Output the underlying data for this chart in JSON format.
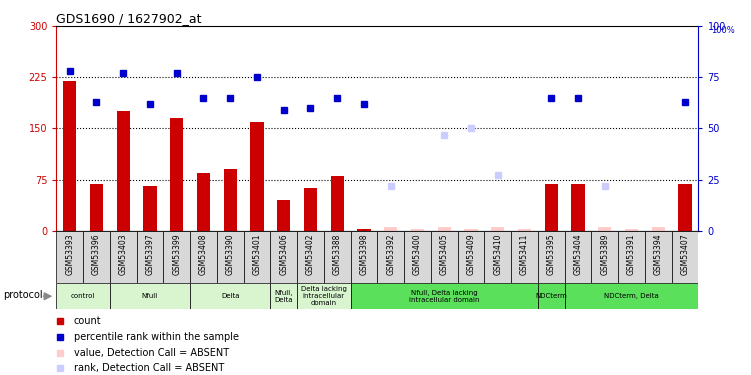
{
  "title": "GDS1690 / 1627902_at",
  "samples": [
    "GSM53393",
    "GSM53396",
    "GSM53403",
    "GSM53397",
    "GSM53399",
    "GSM53408",
    "GSM53390",
    "GSM53401",
    "GSM53406",
    "GSM53402",
    "GSM53388",
    "GSM53398",
    "GSM53392",
    "GSM53400",
    "GSM53405",
    "GSM53409",
    "GSM53410",
    "GSM53411",
    "GSM53395",
    "GSM53404",
    "GSM53389",
    "GSM53391",
    "GSM53394",
    "GSM53407"
  ],
  "count_values": [
    220,
    68,
    175,
    65,
    165,
    85,
    90,
    160,
    45,
    62,
    80,
    3,
    5,
    3,
    5,
    3,
    5,
    3,
    68,
    68,
    5,
    3,
    5,
    68
  ],
  "rank_values": [
    78,
    63,
    77,
    62,
    77,
    65,
    65,
    75,
    59,
    60,
    65,
    62,
    null,
    null,
    null,
    null,
    null,
    null,
    65,
    65,
    null,
    null,
    null,
    63
  ],
  "count_is_absent": [
    false,
    false,
    false,
    false,
    false,
    false,
    false,
    false,
    false,
    false,
    false,
    false,
    true,
    true,
    true,
    true,
    true,
    true,
    false,
    false,
    true,
    true,
    true,
    false
  ],
  "rank_absent_values": [
    null,
    null,
    null,
    null,
    null,
    null,
    null,
    null,
    null,
    null,
    null,
    null,
    22,
    null,
    47,
    50,
    27,
    null,
    null,
    null,
    22,
    null,
    null,
    null
  ],
  "groups": [
    {
      "label": "control",
      "start": 0,
      "end": 1,
      "color": "#d8f5d0"
    },
    {
      "label": "Nfull",
      "start": 2,
      "end": 4,
      "color": "#d8f5d0"
    },
    {
      "label": "Delta",
      "start": 5,
      "end": 7,
      "color": "#d8f5d0"
    },
    {
      "label": "Nfull,\nDelta",
      "start": 8,
      "end": 8,
      "color": "#d8f5d0"
    },
    {
      "label": "Delta lacking\nintracellular\ndomain",
      "start": 9,
      "end": 10,
      "color": "#d8f5d0"
    },
    {
      "label": "Nfull, Delta lacking\nintracellular domain",
      "start": 11,
      "end": 17,
      "color": "#5ae05a"
    },
    {
      "label": "NDCterm",
      "start": 18,
      "end": 18,
      "color": "#5ae05a"
    },
    {
      "label": "NDCterm, Delta",
      "start": 19,
      "end": 23,
      "color": "#5ae05a"
    }
  ],
  "ylim_left": [
    0,
    300
  ],
  "ylim_right": [
    0,
    100
  ],
  "yticks_left": [
    0,
    75,
    150,
    225,
    300
  ],
  "yticks_right": [
    0,
    25,
    50,
    75,
    100
  ],
  "hlines": [
    75,
    150,
    225
  ],
  "bar_color": "#cc0000",
  "rank_color": "#0000cc",
  "absent_bar_color": "#ffcccc",
  "absent_rank_color": "#ccccff",
  "tick_bg_color": "#d8d8d8",
  "legend_items": [
    {
      "color": "#cc0000",
      "marker": "s",
      "label": "count"
    },
    {
      "color": "#0000cc",
      "marker": "s",
      "label": "percentile rank within the sample"
    },
    {
      "color": "#ffcccc",
      "marker": "s",
      "label": "value, Detection Call = ABSENT"
    },
    {
      "color": "#ccccff",
      "marker": "s",
      "label": "rank, Detection Call = ABSENT"
    }
  ]
}
